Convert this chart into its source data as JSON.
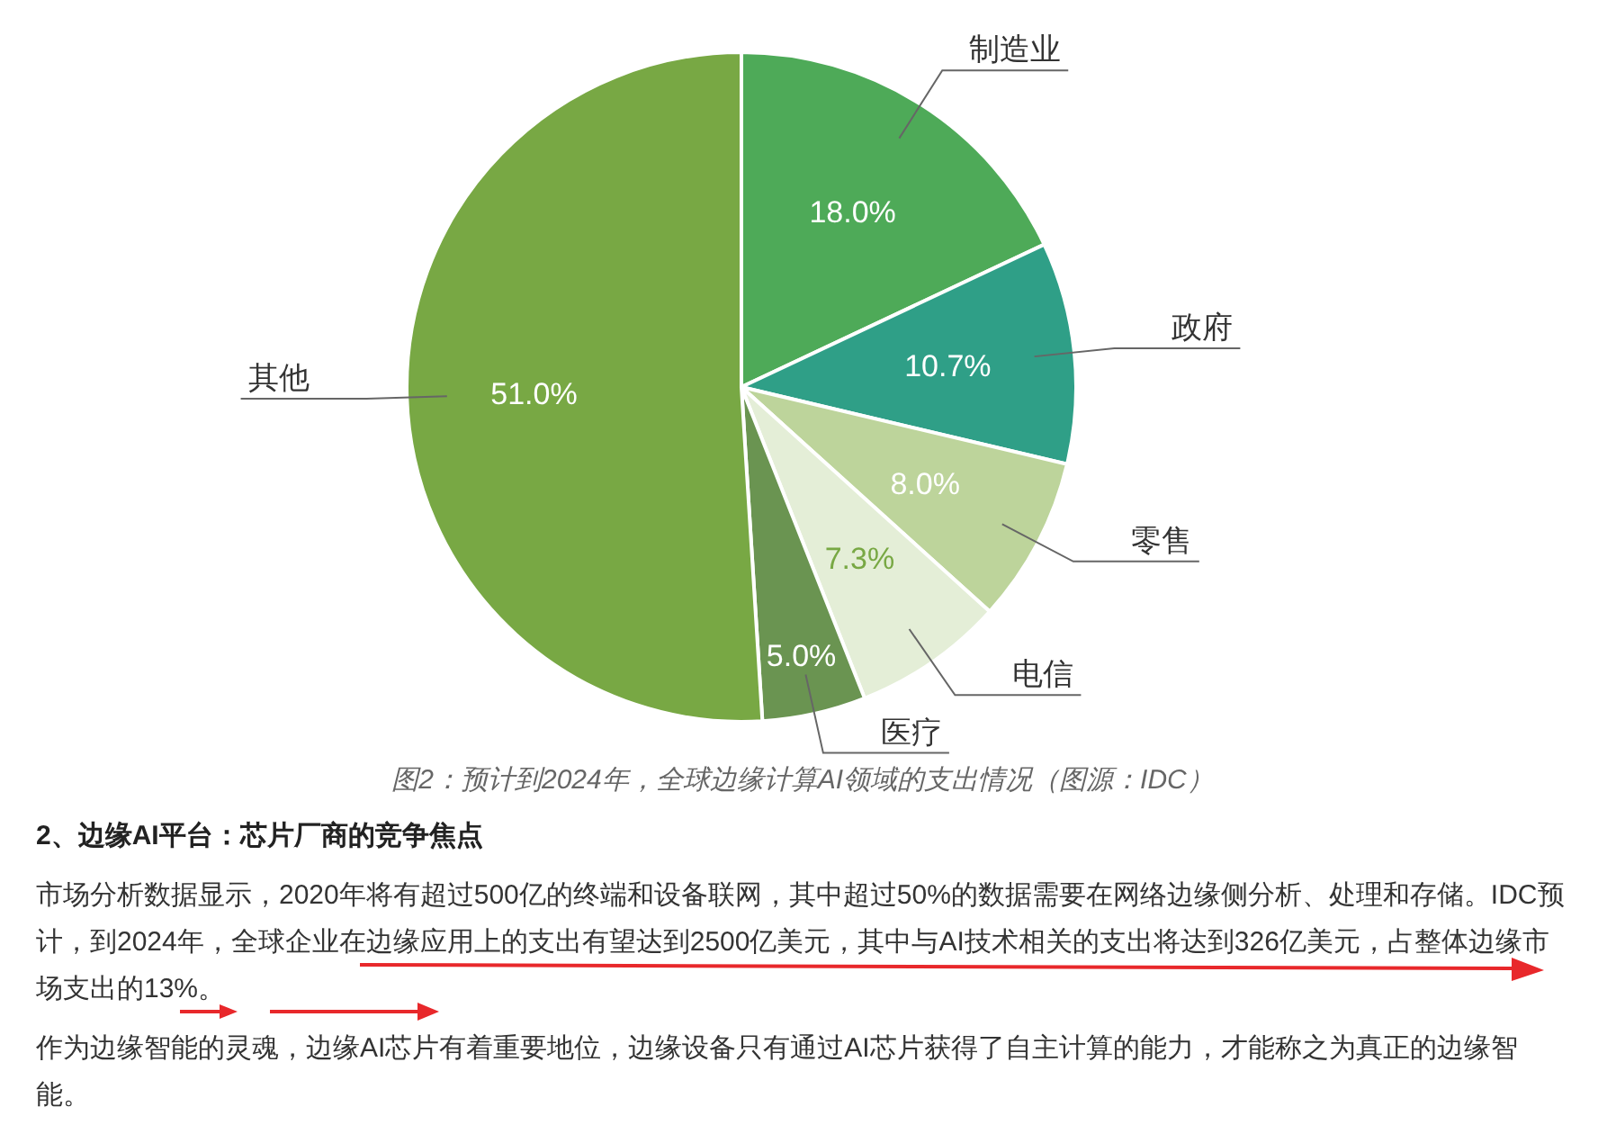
{
  "chart_data": {
    "type": "pie",
    "title": "图2：预计到2024年，全球边缘计算AI领域的支出情况（图源：IDC）",
    "categories": [
      "制造业",
      "政府",
      "零售",
      "电信",
      "医疗",
      "其他"
    ],
    "values": [
      18.0,
      10.7,
      8.0,
      7.3,
      5.0,
      51.0
    ],
    "value_labels": [
      "18.0%",
      "10.7%",
      "8.0%",
      "7.3%",
      "5.0%",
      "51.0%"
    ],
    "colors": [
      "#4eaa58",
      "#2f9f87",
      "#bdd49b",
      "#e4eed7",
      "#6a9451",
      "#78a844"
    ],
    "annotations": [
      "2、边缘AI平台：芯片厂商的竞争焦点",
      "市场分析数据显示，2020年将有超过500亿的终端和设备联网，其中超过50%的数据需要在网络边缘侧分析、处理和存储。IDC预计，到2024年，全球企业在边缘应用上的支出有望达到2500亿美元，其中与AI技术相关的支出将达到326亿美元，占整体边缘市场支出的13%。",
      "作为边缘智能的灵魂，边缘AI芯片有着重要地位，边缘设备只有通过AI芯片获得了自主计算的能力，才能称之为真正的边缘智能。"
    ]
  }
}
